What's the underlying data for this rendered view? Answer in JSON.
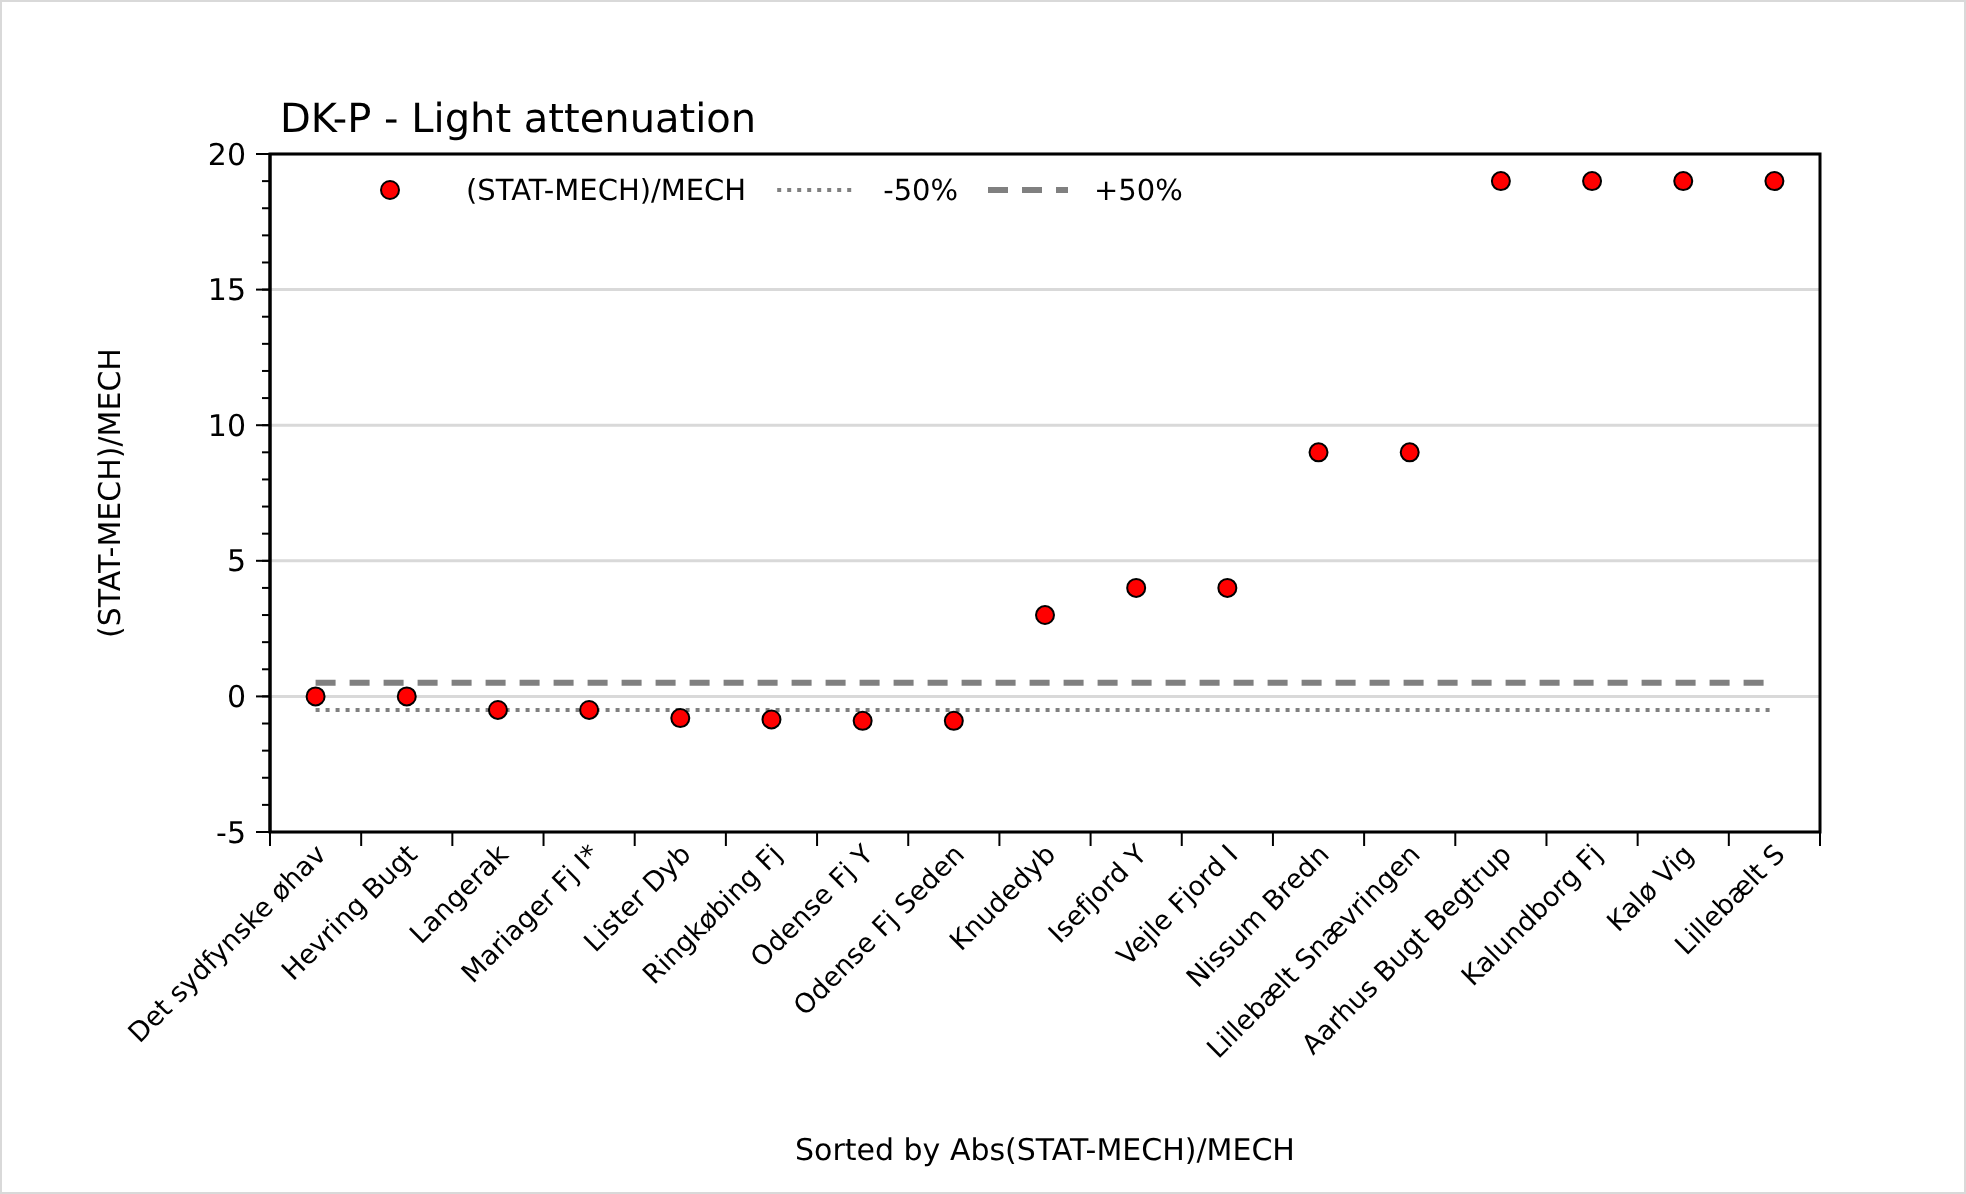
{
  "chart_data": {
    "type": "scatter",
    "title": "DK-P - Light attenuation",
    "xlabel": "Sorted by Abs(STAT-MECH)/MECH",
    "ylabel": "(STAT-MECH)/MECH",
    "categories": [
      "Det sydfynske øhav",
      "Hevring Bugt",
      "Langerak",
      "Mariager Fj I*",
      "Lister Dyb",
      "Ringkøbing Fj",
      "Odense Fj Y",
      "Odense Fj Seden",
      "Knudedyb",
      "Isefjord Y",
      "Vejle Fjord I",
      "Nissum Bredn",
      "Lillebælt Snævringen",
      "Aarhus Bugt Begtrup",
      "Kalundborg Fj",
      "Kalø Vig",
      "Lillebælt S"
    ],
    "series": [
      {
        "name": "(STAT-MECH)/MECH",
        "color": "#ff0000",
        "values": [
          0,
          0,
          -0.5,
          -0.5,
          -0.8,
          -0.85,
          -0.9,
          -0.9,
          3,
          4,
          4,
          9,
          9,
          19,
          19,
          19,
          19
        ]
      }
    ],
    "ref_lines": [
      {
        "axis": "y",
        "value": -0.5,
        "label": "-50%",
        "color": "#808080",
        "line_style": "dotted"
      },
      {
        "axis": "y",
        "value": 0.5,
        "label": "+50%",
        "color": "#808080",
        "line_style": "dashed"
      }
    ],
    "ylim": [
      -5,
      20
    ],
    "yticks": [
      -5,
      0,
      5,
      10,
      15,
      20
    ],
    "grid": "y",
    "legend": "top",
    "marker": "circle"
  }
}
